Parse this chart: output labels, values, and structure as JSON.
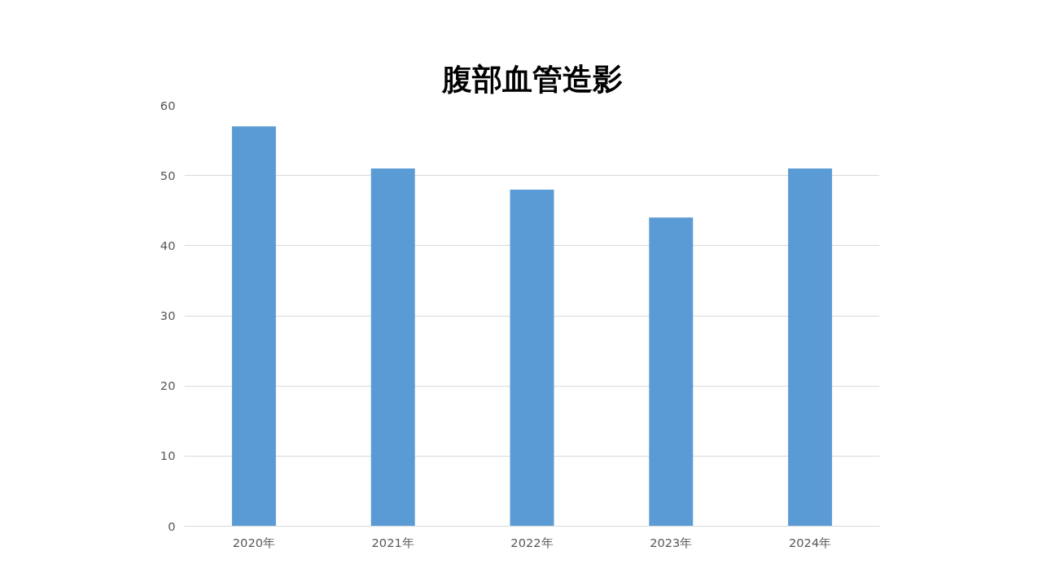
{
  "chart_data": {
    "type": "bar",
    "title": "腹部血管造影",
    "categories": [
      "2020年",
      "2021年",
      "2022年",
      "2023年",
      "2024年"
    ],
    "values": [
      57,
      51,
      48,
      44,
      51
    ],
    "color": "#5b9bd5",
    "ylim": [
      0,
      60
    ],
    "yticks": [
      0,
      10,
      20,
      30,
      40,
      50,
      60
    ],
    "grid": "y"
  }
}
